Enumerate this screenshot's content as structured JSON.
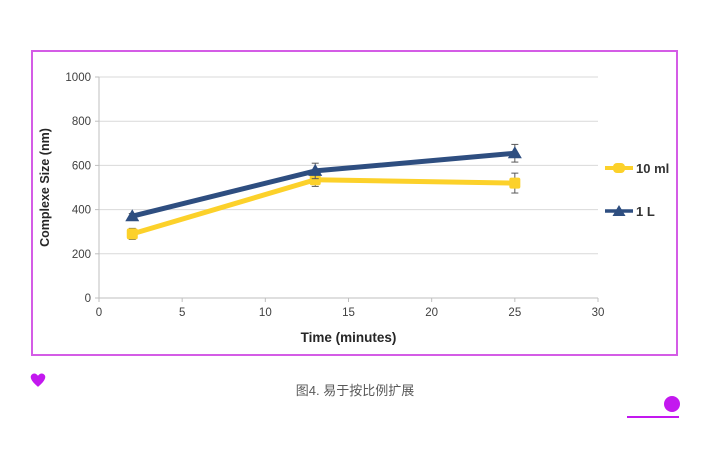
{
  "colors": {
    "frame_border": "#d45ce6",
    "accent_magenta": "#c318ef",
    "series_yellow": "#fcd12a",
    "series_blue": "#2e4e80",
    "gridline": "#d9d9d9",
    "axis_line": "#bfbfbf",
    "tick_text": "#404040",
    "axis_title_text": "#262626",
    "error_bar": "#595959",
    "caption_text": "#595959"
  },
  "chart_data": {
    "type": "line",
    "title": "",
    "xlabel": "Time (minutes)",
    "ylabel": "Complexe Size (nm)",
    "xlim": [
      0,
      30
    ],
    "ylim": [
      0,
      1000
    ],
    "xticks": [
      0,
      5,
      10,
      15,
      20,
      25,
      30
    ],
    "yticks": [
      0,
      200,
      400,
      600,
      800,
      1000
    ],
    "grid": "horizontal",
    "legend_position": "right",
    "series": [
      {
        "name": "10 ml",
        "color": "#fcd12a",
        "marker": "square",
        "x": [
          2,
          13,
          25
        ],
        "y": [
          290,
          535,
          520
        ],
        "yerr": [
          25,
          30,
          45
        ]
      },
      {
        "name": "1 L",
        "color": "#2e4e80",
        "marker": "triangle",
        "x": [
          2,
          13,
          25
        ],
        "y": [
          370,
          575,
          655
        ],
        "yerr": [
          12,
          35,
          40
        ]
      }
    ]
  },
  "caption": "图4. 易于按比例扩展",
  "icons": {
    "heart": "heart-shape",
    "dot": "filled-circle",
    "underline": "horizontal-rule"
  }
}
